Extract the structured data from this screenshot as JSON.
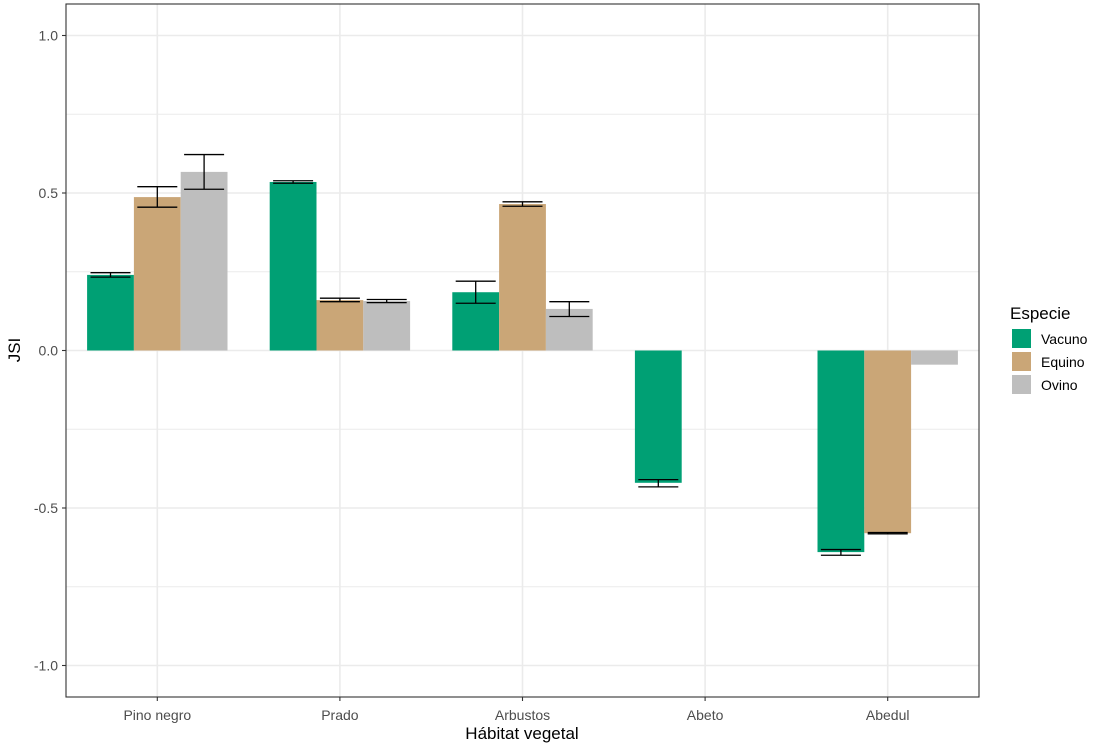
{
  "chart_data": {
    "type": "bar",
    "xlabel": "Hábitat vegetal",
    "ylabel": "JSI",
    "ylim": [
      -1.1,
      1.1
    ],
    "yticks": [
      1.0,
      0.5,
      0.0,
      -0.5,
      -1.0
    ],
    "ytick_labels": [
      "1.0",
      "0.5",
      "0.0",
      "-0.5",
      "-1.0"
    ],
    "categories": [
      "Pino negro",
      "Prado",
      "Arbustos",
      "Abeto",
      "Abedul"
    ],
    "grid": true,
    "legend": {
      "title": "Especie",
      "position": "right"
    },
    "series": [
      {
        "name": "Vacuno",
        "color": "#00a074",
        "values": [
          0.24,
          0.535,
          0.185,
          -0.42,
          -0.64
        ],
        "err_low": [
          0.233,
          0.531,
          0.15,
          -0.433,
          -0.65
        ],
        "err_high": [
          0.247,
          0.539,
          0.22,
          -0.41,
          -0.632
        ]
      },
      {
        "name": "Equino",
        "color": "#caa677",
        "values": [
          0.487,
          0.16,
          0.465,
          null,
          -0.58
        ],
        "err_low": [
          0.455,
          0.155,
          0.458,
          null,
          -0.582
        ],
        "err_high": [
          0.52,
          0.166,
          0.472,
          null,
          -0.578
        ]
      },
      {
        "name": "Ovino",
        "color": "#bebebe",
        "values": [
          0.567,
          0.157,
          0.132,
          null,
          -0.045
        ],
        "err_low": [
          0.512,
          0.152,
          0.108,
          null,
          null
        ],
        "err_high": [
          0.622,
          0.162,
          0.155,
          null,
          null
        ]
      }
    ]
  }
}
